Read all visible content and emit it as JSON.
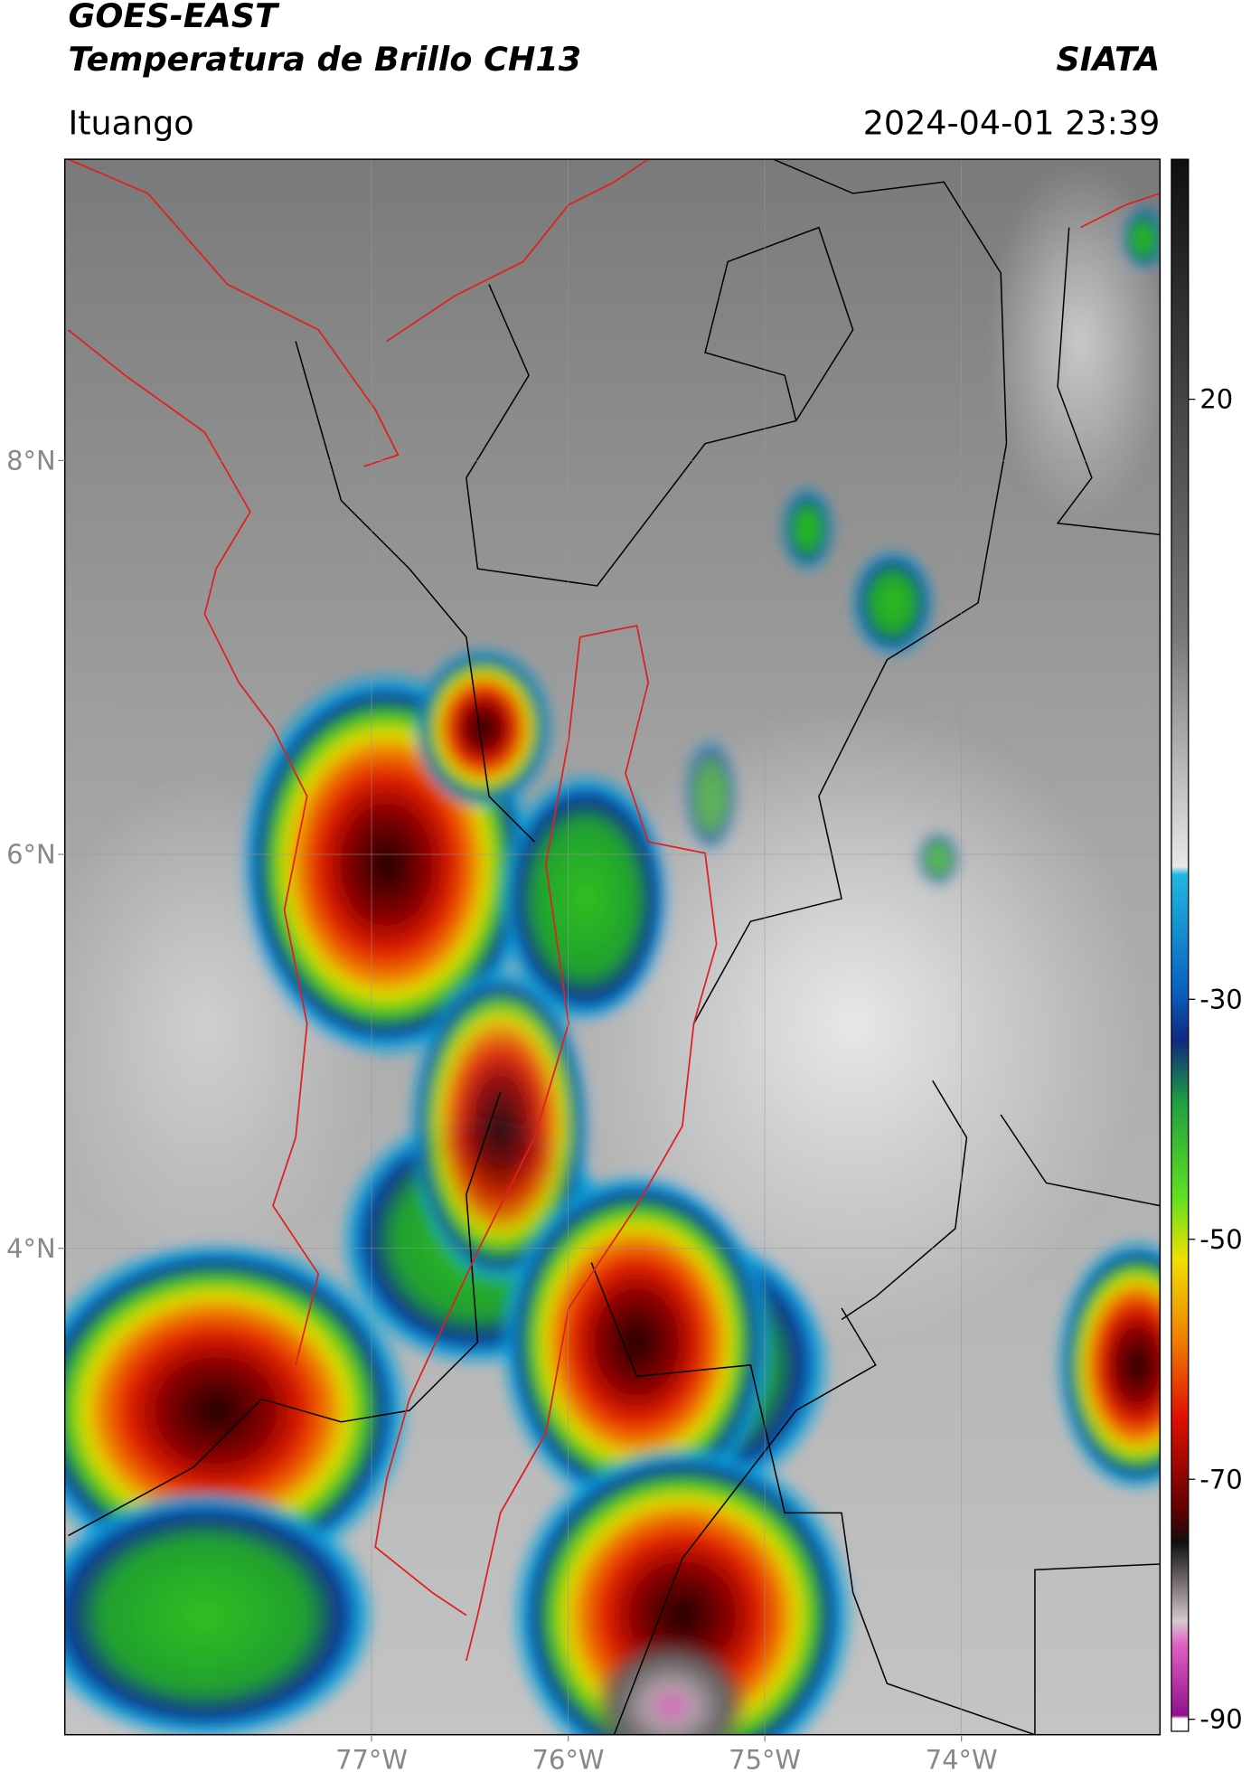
{
  "chart_data": {
    "type": "map",
    "title": "GOES-EAST",
    "subtitle": "Temperatura de Brillo CH13",
    "source": "SIATA",
    "location": "Ituango",
    "datetime": "2024-04-01 23:39",
    "xlim": [
      -78.56,
      -72.99
    ],
    "ylim": [
      1.53,
      9.53
    ],
    "xticks": [
      {
        "value": -77,
        "label": "77°W"
      },
      {
        "value": -76,
        "label": "76°W"
      },
      {
        "value": -75,
        "label": "75°W"
      },
      {
        "value": -74,
        "label": "74°W"
      }
    ],
    "yticks": [
      {
        "value": 8,
        "label": "8°N"
      },
      {
        "value": 6,
        "label": "6°N"
      },
      {
        "value": 4,
        "label": "4°N"
      }
    ],
    "grid": true,
    "colorbar": {
      "lim": [
        -91,
        40
      ],
      "ticks": [
        20,
        -30,
        -50,
        -70,
        -90
      ]
    }
  }
}
